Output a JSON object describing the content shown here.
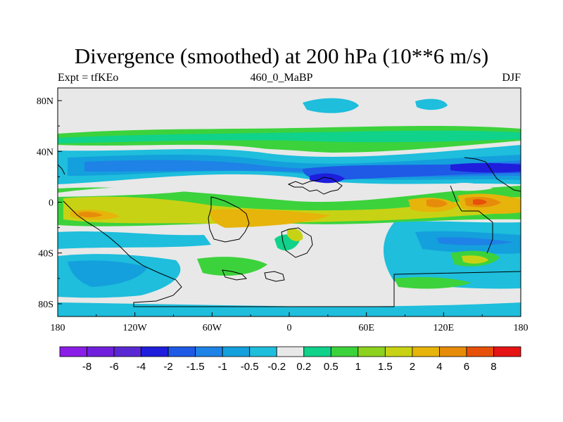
{
  "title": "Divergence (smoothed) at 200 hPa (10**6 m/s)",
  "left_string": "Expt = tfKEo",
  "center_string": "460_0_MaBP",
  "right_string": "DJF",
  "map": {
    "projection": "cylindrical-equidistant",
    "lon_range": [
      -180,
      180
    ],
    "lat_range": [
      -90,
      90
    ],
    "x_ticks": [
      {
        "lon": -180,
        "label": "180"
      },
      {
        "lon": -120,
        "label": "120W"
      },
      {
        "lon": -60,
        "label": "60W"
      },
      {
        "lon": 0,
        "label": "0"
      },
      {
        "lon": 60,
        "label": "60E"
      },
      {
        "lon": 120,
        "label": "120E"
      },
      {
        "lon": 180,
        "label": "180"
      }
    ],
    "y_ticks": [
      {
        "lat": 80,
        "label": "80N"
      },
      {
        "lat": 40,
        "label": "40N"
      },
      {
        "lat": 0,
        "label": "0"
      },
      {
        "lat": -40,
        "label": "40S"
      },
      {
        "lat": -80,
        "label": "80S"
      }
    ]
  },
  "colorbar": {
    "levels": [
      "-8",
      "-6",
      "-4",
      "-2",
      "-1.5",
      "-1",
      "-0.5",
      "-0.2",
      "0.2",
      "0.5",
      "1",
      "1.5",
      "2",
      "4",
      "6",
      "8"
    ],
    "colors": [
      "#8a1ee6",
      "#7020dc",
      "#5a28d2",
      "#1e1edc",
      "#1e5ae6",
      "#1e82e6",
      "#14a0dc",
      "#1ebedc",
      "#e8e8e8",
      "#10d28a",
      "#3cd23c",
      "#8cd21e",
      "#c8d214",
      "#e6b40a",
      "#e68c0a",
      "#e6500a",
      "#e61414"
    ]
  },
  "colors": {
    "background": "#e8e8e8",
    "coastline": "#000000"
  }
}
